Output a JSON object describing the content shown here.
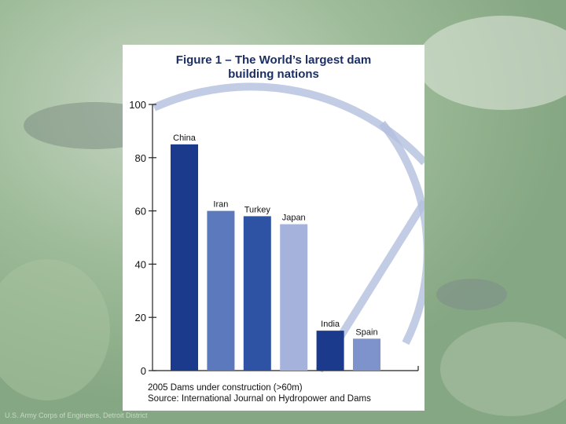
{
  "slide": {
    "credit": "U.S. Army Corps of Engineers, Detroit District"
  },
  "chart_data": {
    "type": "bar",
    "title": "Figure 1 – The World’s largest dam",
    "subtitle": "building nations",
    "categories": [
      "China",
      "Iran",
      "Turkey",
      "Japan",
      "India",
      "Spain"
    ],
    "values": [
      85,
      60,
      58,
      55,
      15,
      12
    ],
    "bar_colors": [
      "#1b3a8c",
      "#5c79bd",
      "#2e52a4",
      "#a4b2dc",
      "#1b3a8c",
      "#7e93cc"
    ],
    "ylim": [
      0,
      100
    ],
    "yticks": [
      0,
      20,
      40,
      60,
      80,
      100
    ],
    "xlabel": "",
    "ylabel": "",
    "grid": false,
    "footnote": "2005 Dams under construction (>60m)",
    "source": "Source: International Journal on Hydropower and Dams"
  }
}
